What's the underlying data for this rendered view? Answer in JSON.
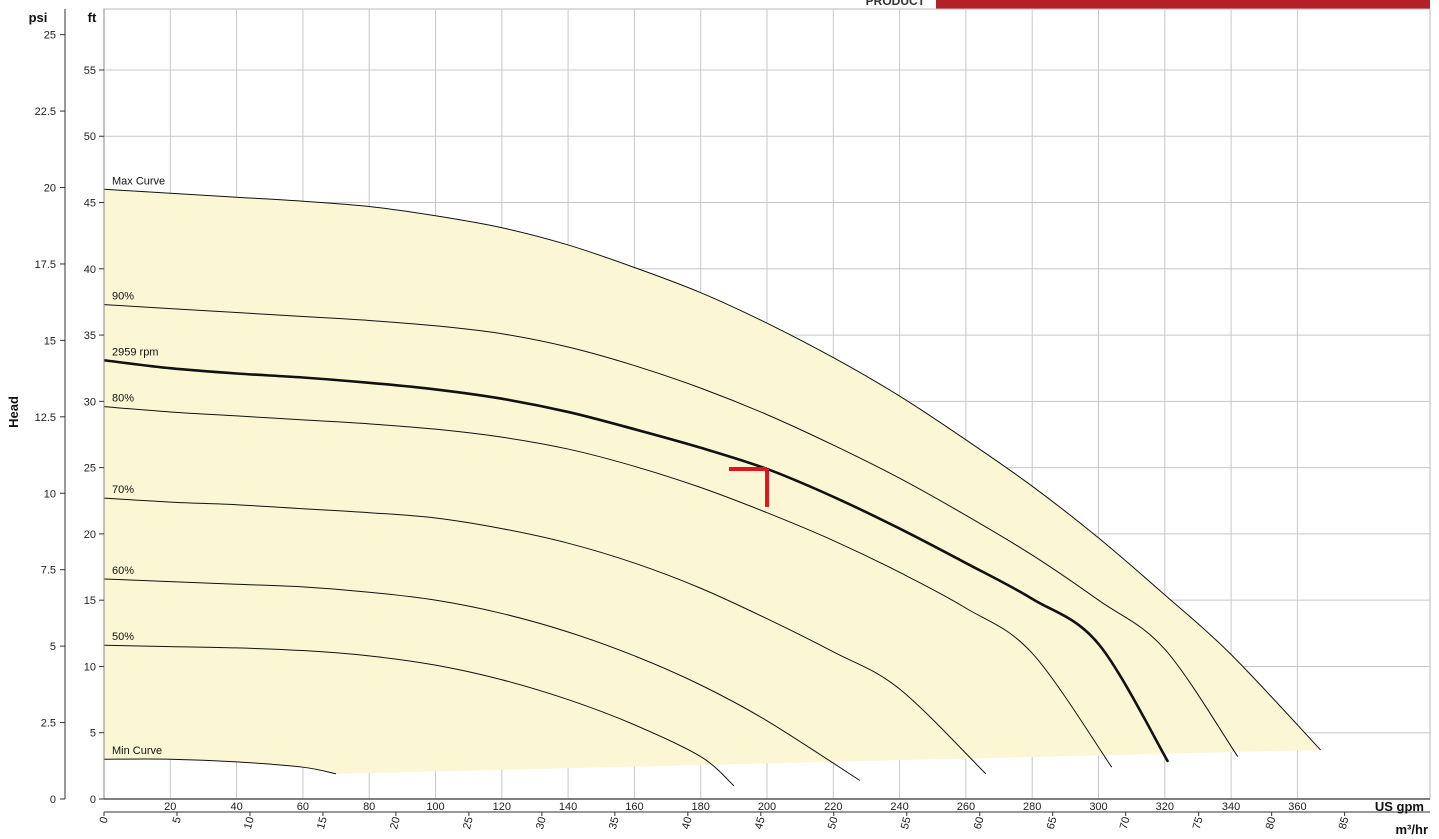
{
  "header": {
    "product_label": "PRODUCT",
    "accent_color": "#b32025"
  },
  "chart_data": {
    "type": "line",
    "title": "",
    "ylabel": "Head",
    "units": {
      "psi": "psi",
      "ft": "ft",
      "usgpm": "US gpm",
      "m3hr": "m³/hr"
    },
    "x_usgpm": {
      "range": [
        0,
        400
      ],
      "ticks": [
        20,
        40,
        60,
        80,
        100,
        120,
        140,
        160,
        180,
        200,
        220,
        240,
        260,
        280,
        300,
        320,
        340,
        360
      ]
    },
    "x_m3hr": {
      "ticks": [
        0,
        5,
        10,
        15,
        20,
        25,
        30,
        35,
        40,
        45,
        50,
        55,
        60,
        65,
        70,
        75,
        80,
        85
      ]
    },
    "y_ft": {
      "range": [
        0,
        59.6
      ],
      "ticks": [
        0,
        5,
        10,
        15,
        20,
        25,
        30,
        35,
        40,
        45,
        50,
        55
      ]
    },
    "y_psi": {
      "ticks": [
        "0",
        "2.5",
        "5",
        "7.5",
        "10",
        "12.5",
        "15",
        "17.5",
        "20",
        "22.5",
        "25"
      ]
    },
    "grid": true,
    "operating_range_color": "#fbf7d5",
    "operating_point": {
      "x": 200,
      "y": 24.9,
      "color": "#e0161b"
    },
    "series": [
      {
        "name": "Max Curve",
        "bold": false,
        "points": [
          [
            0,
            46.0
          ],
          [
            20,
            45.7
          ],
          [
            40,
            45.4
          ],
          [
            60,
            45.1
          ],
          [
            80,
            44.7
          ],
          [
            100,
            44.0
          ],
          [
            120,
            43.1
          ],
          [
            140,
            41.8
          ],
          [
            160,
            40.1
          ],
          [
            180,
            38.2
          ],
          [
            200,
            35.9
          ],
          [
            220,
            33.3
          ],
          [
            240,
            30.4
          ],
          [
            260,
            27.1
          ],
          [
            280,
            23.6
          ],
          [
            300,
            19.7
          ],
          [
            320,
            15.4
          ],
          [
            340,
            10.9
          ],
          [
            367,
            3.7
          ]
        ]
      },
      {
        "name": "90%",
        "bold": false,
        "points": [
          [
            0,
            37.3
          ],
          [
            20,
            37.0
          ],
          [
            40,
            36.7
          ],
          [
            60,
            36.4
          ],
          [
            80,
            36.1
          ],
          [
            100,
            35.7
          ],
          [
            120,
            35.1
          ],
          [
            140,
            34.1
          ],
          [
            160,
            32.7
          ],
          [
            180,
            31.0
          ],
          [
            200,
            29.0
          ],
          [
            220,
            26.7
          ],
          [
            240,
            24.2
          ],
          [
            260,
            21.4
          ],
          [
            280,
            18.4
          ],
          [
            300,
            15.0
          ],
          [
            320,
            11.3
          ],
          [
            342,
            3.2
          ]
        ]
      },
      {
        "name": "2959 rpm",
        "bold": true,
        "points": [
          [
            0,
            33.1
          ],
          [
            20,
            32.5
          ],
          [
            40,
            32.1
          ],
          [
            60,
            31.8
          ],
          [
            80,
            31.4
          ],
          [
            100,
            30.9
          ],
          [
            120,
            30.2
          ],
          [
            140,
            29.2
          ],
          [
            160,
            27.9
          ],
          [
            180,
            26.5
          ],
          [
            200,
            24.9
          ],
          [
            220,
            22.8
          ],
          [
            240,
            20.4
          ],
          [
            260,
            17.8
          ],
          [
            280,
            15.1
          ],
          [
            300,
            11.7
          ],
          [
            321,
            2.8
          ]
        ]
      },
      {
        "name": "80%",
        "bold": false,
        "points": [
          [
            0,
            29.6
          ],
          [
            20,
            29.2
          ],
          [
            40,
            28.9
          ],
          [
            60,
            28.6
          ],
          [
            80,
            28.3
          ],
          [
            100,
            27.9
          ],
          [
            120,
            27.3
          ],
          [
            140,
            26.4
          ],
          [
            160,
            25.1
          ],
          [
            180,
            23.5
          ],
          [
            200,
            21.6
          ],
          [
            220,
            19.5
          ],
          [
            240,
            17.1
          ],
          [
            260,
            14.4
          ],
          [
            280,
            11.0
          ],
          [
            304,
            2.4
          ]
        ]
      },
      {
        "name": "70%",
        "bold": false,
        "points": [
          [
            0,
            22.7
          ],
          [
            20,
            22.4
          ],
          [
            40,
            22.2
          ],
          [
            60,
            21.9
          ],
          [
            80,
            21.6
          ],
          [
            100,
            21.2
          ],
          [
            120,
            20.4
          ],
          [
            140,
            19.3
          ],
          [
            160,
            17.8
          ],
          [
            180,
            15.9
          ],
          [
            200,
            13.6
          ],
          [
            220,
            11.1
          ],
          [
            240,
            8.3
          ],
          [
            266,
            1.9
          ]
        ]
      },
      {
        "name": "60%",
        "bold": false,
        "points": [
          [
            0,
            16.6
          ],
          [
            20,
            16.4
          ],
          [
            40,
            16.2
          ],
          [
            60,
            16.0
          ],
          [
            80,
            15.6
          ],
          [
            100,
            15.0
          ],
          [
            120,
            14.0
          ],
          [
            140,
            12.6
          ],
          [
            160,
            10.8
          ],
          [
            180,
            8.6
          ],
          [
            200,
            5.9
          ],
          [
            228,
            1.4
          ]
        ]
      },
      {
        "name": "50%",
        "bold": false,
        "points": [
          [
            0,
            11.6
          ],
          [
            20,
            11.5
          ],
          [
            40,
            11.4
          ],
          [
            60,
            11.2
          ],
          [
            80,
            10.8
          ],
          [
            100,
            10.1
          ],
          [
            120,
            9.0
          ],
          [
            140,
            7.5
          ],
          [
            160,
            5.6
          ],
          [
            180,
            3.2
          ],
          [
            190,
            1.0
          ]
        ]
      },
      {
        "name": "Min Curve",
        "bold": false,
        "points": [
          [
            0,
            3.0
          ],
          [
            20,
            3.0
          ],
          [
            40,
            2.8
          ],
          [
            60,
            2.4
          ],
          [
            70,
            1.9
          ]
        ]
      }
    ]
  }
}
